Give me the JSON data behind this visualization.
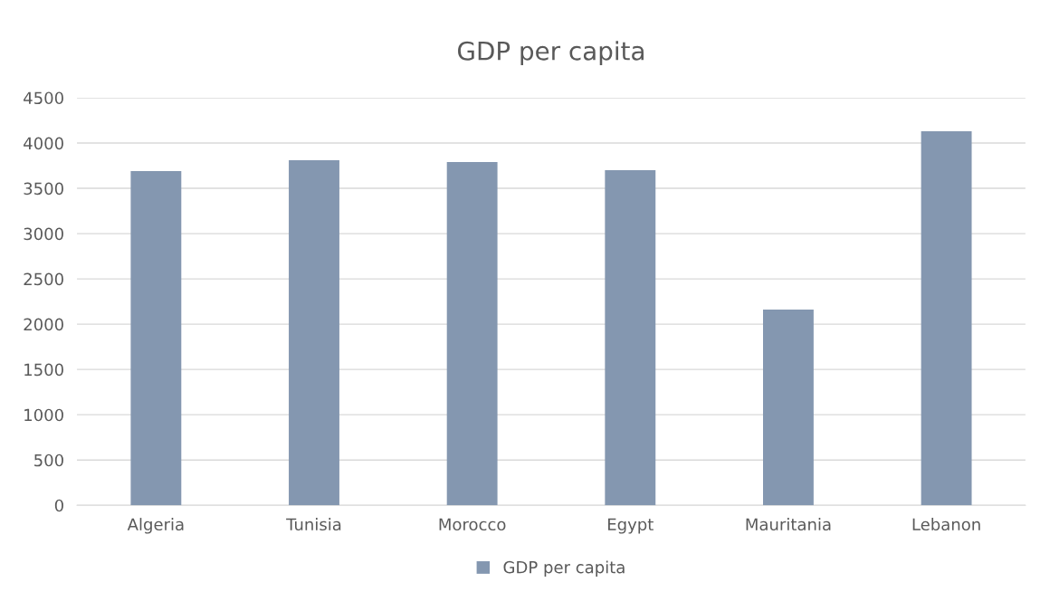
{
  "chart_data": {
    "type": "bar",
    "title": "GDP per capita",
    "categories": [
      "Algeria",
      "Tunisia",
      "Morocco",
      "Egypt",
      "Mauritania",
      "Lebanon"
    ],
    "series": [
      {
        "name": "GDP per capita",
        "color": "#8497b0",
        "values": [
          3690,
          3810,
          3790,
          3700,
          2160,
          4130
        ]
      }
    ],
    "ylim": [
      0,
      4500
    ],
    "yticks": [
      0,
      500,
      1000,
      1500,
      2000,
      2500,
      3000,
      3500,
      4000,
      4500
    ],
    "grid": "y",
    "legend": "bottom"
  }
}
